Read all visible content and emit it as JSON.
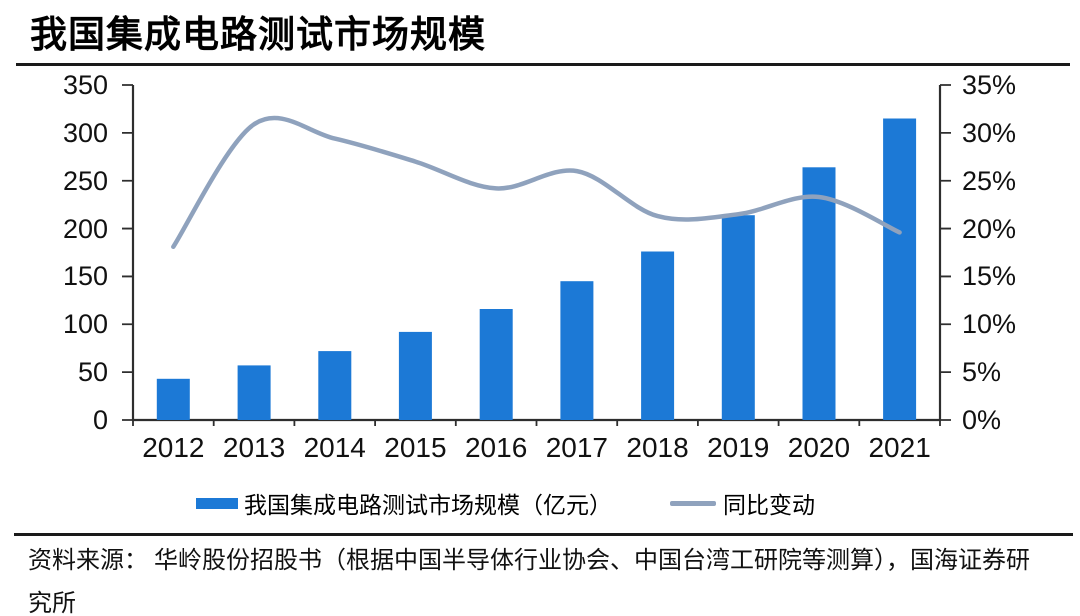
{
  "page": {
    "title": "我国集成电路测试市场规模",
    "source_note": "资料来源： 华岭股份招股书（根据中国半导体行业协会、中国台湾工研院等测算），国海证券研究所"
  },
  "colors": {
    "axis": "#2e2e2e",
    "rule": "#1a1a1a",
    "bar": "#1c79d6",
    "line": "#8fa2bd"
  },
  "chart_data": {
    "type": "combo",
    "categories": [
      "2012",
      "2013",
      "2014",
      "2015",
      "2016",
      "2017",
      "2018",
      "2019",
      "2020",
      "2021"
    ],
    "series": [
      {
        "name": "我国集成电路测试市场规模（亿元）",
        "chart_type": "bar",
        "axis": "left",
        "color": "#1c79d6",
        "values": [
          43,
          57,
          72,
          92,
          116,
          145,
          176,
          214,
          264,
          315
        ]
      },
      {
        "name": "同比变动",
        "chart_type": "line",
        "axis": "right",
        "color": "#8fa2bd",
        "unit": "%",
        "values": [
          18.1,
          30.9,
          29.4,
          27.0,
          24.2,
          26.0,
          21.3,
          21.5,
          23.3,
          19.6
        ]
      }
    ],
    "left_axis": {
      "min": 0,
      "max": 350,
      "tick_step": 50,
      "tick_labels": [
        "350",
        "300",
        "250",
        "200",
        "150",
        "100",
        "50",
        "0"
      ]
    },
    "right_axis": {
      "min": 0,
      "max": 35,
      "tick_step": 5,
      "tick_labels": [
        "35%",
        "30%",
        "25%",
        "20%",
        "15%",
        "10%",
        "5%",
        "0%"
      ]
    },
    "grid": false,
    "legend_position": "bottom"
  }
}
